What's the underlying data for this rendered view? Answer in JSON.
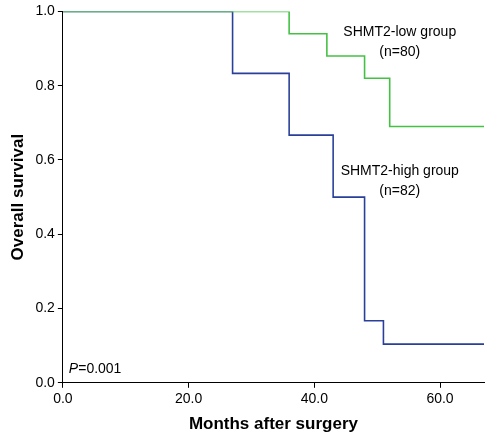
{
  "chart_data": {
    "type": "line",
    "x_label": "Months after surgery",
    "y_label": "Overall survival",
    "xlim": [
      0,
      67
    ],
    "xticks": [
      {
        "value": 0,
        "label": "0.0"
      },
      {
        "value": 20,
        "label": "20.0"
      },
      {
        "value": 40,
        "label": "40.0"
      },
      {
        "value": 60,
        "label": "60.0"
      }
    ],
    "ylim": [
      0,
      1
    ],
    "yticks": [
      {
        "value": 0,
        "label": "0.0"
      },
      {
        "value": 0.2,
        "label": "0.2"
      },
      {
        "value": 0.4,
        "label": "0.4"
      },
      {
        "value": 0.6,
        "label": "0.6"
      },
      {
        "value": 0.8,
        "label": "0.8"
      },
      {
        "value": 1,
        "label": "1.0"
      }
    ],
    "grid": false,
    "line_style": "stepped",
    "annotations": [
      "P=0.001"
    ],
    "series": [
      {
        "name": "SHMT2-low group",
        "note": "(n=80)",
        "color": "#44c144",
        "x": [
          0,
          36,
          42,
          48,
          52,
          67
        ],
        "values": [
          1.0,
          0.94,
          0.88,
          0.82,
          0.69,
          0.69
        ]
      },
      {
        "name": "SHMT2-high group",
        "note": "(n=82)",
        "color": "#2a3f9a",
        "x": [
          0,
          27,
          36,
          43,
          48,
          51,
          67
        ],
        "values": [
          1.0,
          0.833,
          0.667,
          0.5,
          0.167,
          0.104,
          0.104
        ]
      }
    ]
  }
}
